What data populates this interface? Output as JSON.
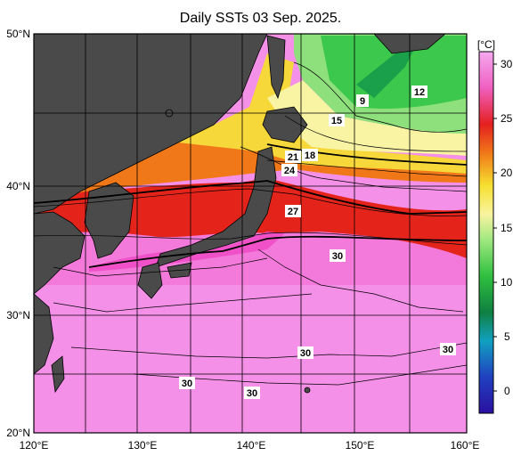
{
  "title": "Daily SSTs 03 Sep. 2025.",
  "axes": {
    "lat_labels": [
      "50°N",
      "40°N",
      "30°N",
      "20°N"
    ],
    "lon_labels": [
      "120°E",
      "130°E",
      "140°E",
      "150°E",
      "160°E"
    ]
  },
  "colorbar": {
    "unit": "[°C]",
    "ticks": [
      "30",
      "25",
      "20",
      "15",
      "10",
      "5",
      "0"
    ]
  },
  "contour_labels": [
    "9",
    "12",
    "15",
    "18",
    "21",
    "24",
    "27",
    "30",
    "30",
    "30",
    "30",
    "30"
  ],
  "colors": {
    "land": "#4a4a4a",
    "sea_warm": "#f490e8",
    "sea_hot": "#f36ad0",
    "red": "#e4241a",
    "orange": "#f07818",
    "yellow": "#f6d83a",
    "pale_yellow": "#f8f4a4",
    "green_light": "#8ee07c",
    "green": "#3cc84c",
    "green_dark": "#1aa04a"
  }
}
